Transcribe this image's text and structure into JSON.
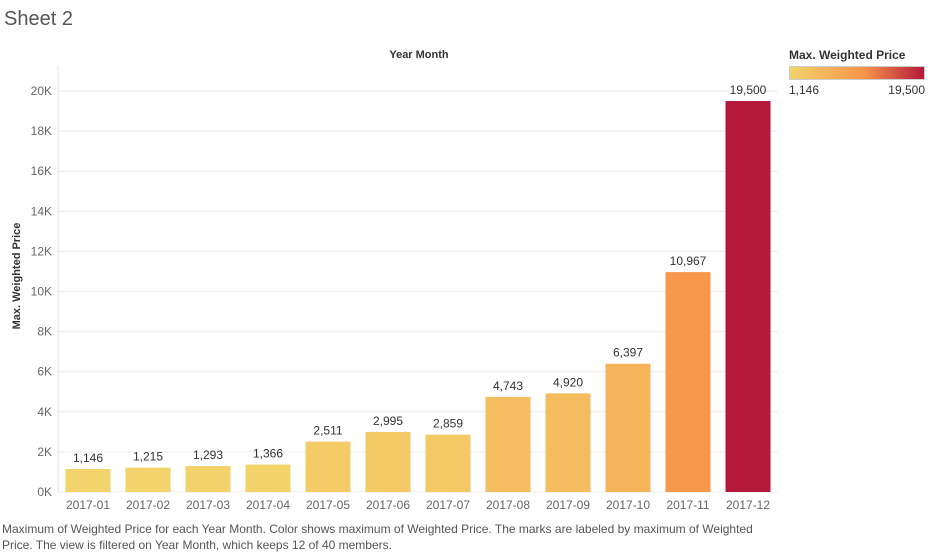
{
  "sheet_title": "Sheet 2",
  "legend": {
    "title": "Max. Weighted Price",
    "min_label": "1,146",
    "max_label": "19,500",
    "color_low": "#f3d36b",
    "color_mid": "#f7954a",
    "color_high": "#b5183a"
  },
  "caption": "Maximum of  Weighted Price for each Year Month.  Color shows maximum of  Weighted Price.  The marks are labeled by maximum of  Weighted Price. The view is filtered on Year Month, which keeps 12 of 40 members.",
  "chart_data": {
    "type": "bar",
    "title": "Year Month",
    "xlabel": "",
    "ylabel": "Max. Weighted Price",
    "ylim": [
      0,
      21000
    ],
    "yticks": [
      0,
      2000,
      4000,
      6000,
      8000,
      10000,
      12000,
      14000,
      16000,
      18000,
      20000
    ],
    "ytick_labels": [
      "0K",
      "2K",
      "4K",
      "6K",
      "8K",
      "10K",
      "12K",
      "14K",
      "16K",
      "18K",
      "20K"
    ],
    "grid": true,
    "categories": [
      "2017-01",
      "2017-02",
      "2017-03",
      "2017-04",
      "2017-05",
      "2017-06",
      "2017-07",
      "2017-08",
      "2017-09",
      "2017-10",
      "2017-11",
      "2017-12"
    ],
    "values": [
      1146,
      1215,
      1293,
      1366,
      2511,
      2995,
      2859,
      4743,
      4920,
      6397,
      10967,
      19500
    ],
    "value_labels": [
      "1,146",
      "1,215",
      "1,293",
      "1,366",
      "2,511",
      "2,995",
      "2,859",
      "4,743",
      "4,920",
      "6,397",
      "10,967",
      "19,500"
    ]
  }
}
